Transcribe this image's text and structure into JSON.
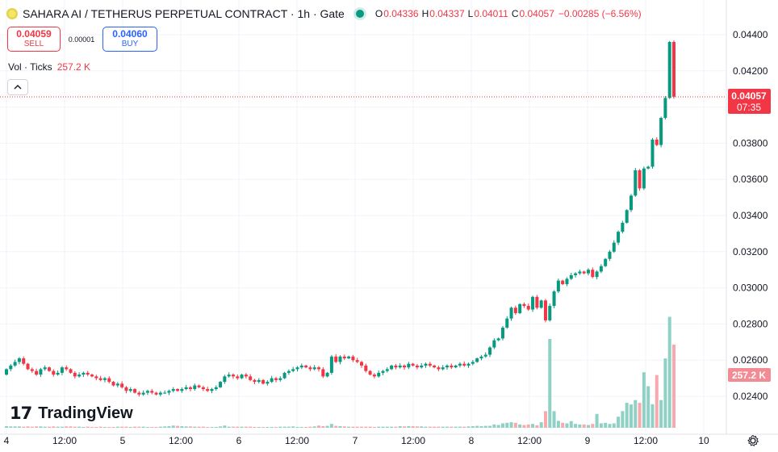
{
  "header": {
    "symbol": "SAHARA AI / TETHERUS PERPETUAL CONTRACT · 1h · Gate",
    "ohlc": [
      {
        "label": "O",
        "value": "0.04336"
      },
      {
        "label": "H",
        "value": "0.04337"
      },
      {
        "label": "L",
        "value": "0.04011"
      },
      {
        "label": "C",
        "value": "0.04057"
      },
      {
        "label": "",
        "value": "−0.00285 (−6.56%)"
      }
    ]
  },
  "trade": {
    "sell_price": "0.04059",
    "sell_label": "SELL",
    "spread": "0.00001",
    "buy_price": "0.04060",
    "buy_label": "BUY"
  },
  "volume_legend": {
    "label": "Vol · Ticks",
    "value": "257.2 K"
  },
  "collapse_icon": "chevron-up-icon",
  "brand": {
    "mark": "17",
    "name": "TradingView"
  },
  "settings_icon": "gear-icon",
  "colors": {
    "up": "#089981",
    "down": "#f23645",
    "up_vol": "#8fd1c5",
    "down_vol": "#f7a9ae",
    "accent": "#2962ff"
  },
  "chart_data": {
    "type": "candlestick",
    "interval": "1h",
    "y_ticks": [
      "0.04400",
      "0.04200",
      "0.04000",
      "0.03800",
      "0.03600",
      "0.03400",
      "0.03200",
      "0.03000",
      "0.02800",
      "0.02600",
      "0.02400"
    ],
    "x_ticks": [
      "4",
      "12:00",
      "5",
      "12:00",
      "6",
      "12:00",
      "7",
      "12:00",
      "8",
      "12:00",
      "9",
      "12:00",
      "10"
    ],
    "last_price": "0.04057",
    "countdown": "07:35",
    "last_volume": "257.2 K",
    "close": [
      0.0255,
      0.0257,
      0.0259,
      0.0261,
      0.0258,
      0.0255,
      0.0254,
      0.0252,
      0.0255,
      0.0256,
      0.0254,
      0.0252,
      0.0253,
      0.0256,
      0.0255,
      0.0253,
      0.0251,
      0.0252,
      0.0253,
      0.0252,
      0.0251,
      0.025,
      0.0249,
      0.025,
      0.0248,
      0.0246,
      0.0247,
      0.0245,
      0.0243,
      0.0244,
      0.0242,
      0.0241,
      0.0242,
      0.0243,
      0.0242,
      0.0241,
      0.0242,
      0.0242,
      0.0243,
      0.0244,
      0.0243,
      0.0244,
      0.0245,
      0.0244,
      0.0246,
      0.0245,
      0.0244,
      0.0243,
      0.0244,
      0.0245,
      0.0248,
      0.0251,
      0.0252,
      0.0251,
      0.025,
      0.0252,
      0.0251,
      0.0249,
      0.0248,
      0.0249,
      0.0247,
      0.0248,
      0.025,
      0.0249,
      0.025,
      0.0253,
      0.0254,
      0.0255,
      0.0256,
      0.0257,
      0.0256,
      0.0255,
      0.0256,
      0.0255,
      0.0251,
      0.0253,
      0.0262,
      0.0259,
      0.0262,
      0.0261,
      0.0262,
      0.026,
      0.0259,
      0.0257,
      0.0254,
      0.0252,
      0.0251,
      0.0253,
      0.0254,
      0.0255,
      0.0257,
      0.0256,
      0.0257,
      0.0256,
      0.0258,
      0.0257,
      0.0256,
      0.0257,
      0.0258,
      0.0257,
      0.0256,
      0.0255,
      0.0256,
      0.0257,
      0.0256,
      0.0257,
      0.0258,
      0.0257,
      0.0258,
      0.0259,
      0.0261,
      0.0262,
      0.0263,
      0.0267,
      0.0271,
      0.0272,
      0.0278,
      0.0283,
      0.0289,
      0.0286,
      0.0291,
      0.029,
      0.0288,
      0.0295,
      0.0289,
      0.0293,
      0.0282,
      0.029,
      0.0298,
      0.0304,
      0.0302,
      0.0305,
      0.0307,
      0.0308,
      0.0309,
      0.0308,
      0.031,
      0.0306,
      0.0309,
      0.0312,
      0.0316,
      0.032,
      0.0325,
      0.0331,
      0.0336,
      0.0343,
      0.0351,
      0.0365,
      0.0355,
      0.0366,
      0.0367,
      0.0382,
      0.0379,
      0.0394,
      0.0405,
      0.0436,
      0.04057
    ],
    "volume_k": [
      6,
      5,
      5,
      5,
      4,
      5,
      4,
      5,
      5,
      4,
      4,
      5,
      4,
      4,
      5,
      5,
      4,
      4,
      3,
      4,
      3,
      3,
      4,
      3,
      3,
      3,
      4,
      4,
      4,
      3,
      4,
      4,
      4,
      3,
      3,
      3,
      4,
      5,
      6,
      8,
      7,
      6,
      5,
      5,
      4,
      4,
      4,
      3,
      3,
      3,
      5,
      8,
      4,
      4,
      4,
      4,
      4,
      4,
      3,
      3,
      3,
      3,
      3,
      3,
      4,
      4,
      4,
      5,
      3,
      3,
      3,
      4,
      5,
      8,
      6,
      7,
      14,
      7,
      6,
      5,
      4,
      4,
      4,
      4,
      4,
      4,
      3,
      4,
      4,
      4,
      4,
      4,
      6,
      5,
      6,
      6,
      5,
      5,
      4,
      4,
      4,
      4,
      4,
      4,
      4,
      4,
      4,
      4,
      5,
      6,
      7,
      6,
      7,
      7,
      12,
      10,
      16,
      18,
      20,
      18,
      12,
      10,
      12,
      14,
      9,
      20,
      60,
      320,
      60,
      25,
      18,
      16,
      24,
      14,
      12,
      12,
      10,
      14,
      50,
      16,
      18,
      14,
      16,
      40,
      60,
      90,
      84,
      100,
      90,
      200,
      150,
      85,
      190,
      100,
      250,
      400,
      300,
      257.2
    ]
  }
}
